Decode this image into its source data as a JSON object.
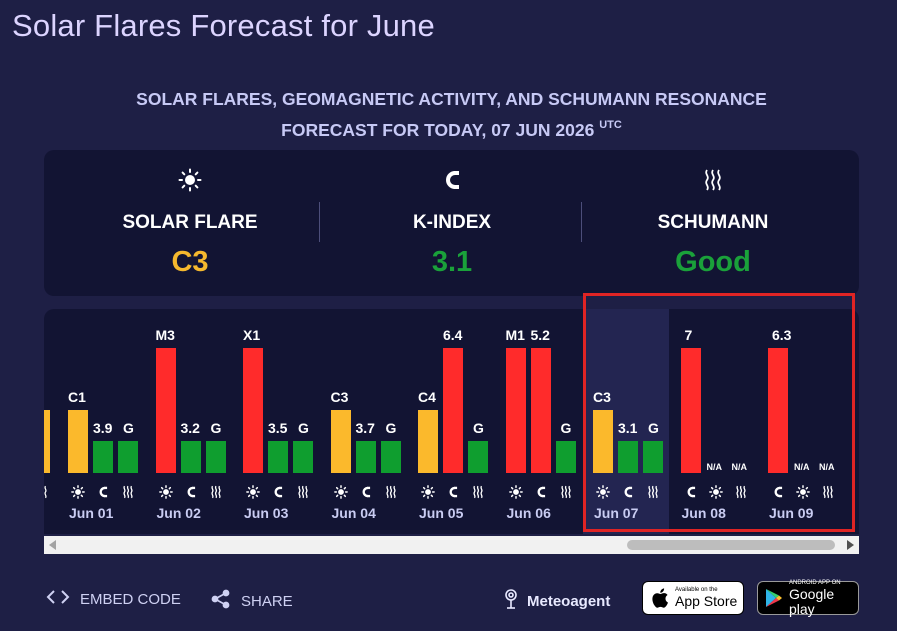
{
  "page": {
    "title": "Solar Flares Forecast for June",
    "subtitle_line1": "SOLAR FLARES, GEOMAGNETIC ACTIVITY, AND SCHUMANN RESONANCE",
    "subtitle_line2": "FORECAST FOR TODAY, 07 JUN 2026",
    "subtitle_sup": "UTC"
  },
  "summary": {
    "solar": {
      "icon": "sun-icon",
      "label": "SOLAR FLARE",
      "value": "C3",
      "color": "#f5b82e"
    },
    "kindex": {
      "icon": "magnet-icon",
      "label": "K-INDEX",
      "value": "3.1",
      "color": "#1aa13a"
    },
    "schumann": {
      "icon": "waves-icon",
      "label": "SCHUMANN",
      "value": "Good",
      "color": "#1aa13a"
    }
  },
  "colors": {
    "yellow": "#fbb92c",
    "green": "#0f9e2f",
    "red": "#ff2b2b",
    "highlight_border": "#e02424"
  },
  "chart_data": {
    "type": "bar",
    "partial_left_labels": [
      ""
    ],
    "days": [
      {
        "date": "Jun 01",
        "flare": "C1",
        "flare_color": "yellow",
        "kindex": "3.9",
        "kindex_color": "green",
        "schumann": "G",
        "schumann_color": "green"
      },
      {
        "date": "Jun 02",
        "flare": "M3",
        "flare_color": "red",
        "kindex": "3.2",
        "kindex_color": "green",
        "schumann": "G",
        "schumann_color": "green"
      },
      {
        "date": "Jun 03",
        "flare": "X1",
        "flare_color": "red",
        "kindex": "3.5",
        "kindex_color": "green",
        "schumann": "G",
        "schumann_color": "green"
      },
      {
        "date": "Jun 04",
        "flare": "C3",
        "flare_color": "yellow",
        "kindex": "3.7",
        "kindex_color": "green",
        "schumann": "G",
        "schumann_color": "green"
      },
      {
        "date": "Jun 05",
        "flare": "C4",
        "flare_color": "yellow",
        "kindex": "6.4",
        "kindex_color": "red",
        "schumann": "G",
        "schumann_color": "green"
      },
      {
        "date": "Jun 06",
        "flare": "M1",
        "flare_color": "red",
        "kindex": "5.2",
        "kindex_color": "red",
        "schumann": "G",
        "schumann_color": "green"
      },
      {
        "date": "Jun 07",
        "flare": "C3",
        "flare_color": "yellow",
        "kindex": "3.1",
        "kindex_color": "green",
        "schumann": "G",
        "schumann_color": "green",
        "today": true
      },
      {
        "date": "Jun 08",
        "kindex": "7",
        "kindex_color": "red",
        "flare": "N/A",
        "schumann": "N/A"
      },
      {
        "date": "Jun 09",
        "kindex": "6.3",
        "kindex_color": "red",
        "flare": "N/A",
        "schumann": "N/A"
      }
    ]
  },
  "footer": {
    "embed": "EMBED CODE",
    "share": "SHARE",
    "meteoagent": "Meteoagent",
    "appstore_small": "Available on the",
    "appstore_big": "App Store",
    "gplay_small": "ANDROID APP ON",
    "gplay_big": "Google play"
  }
}
